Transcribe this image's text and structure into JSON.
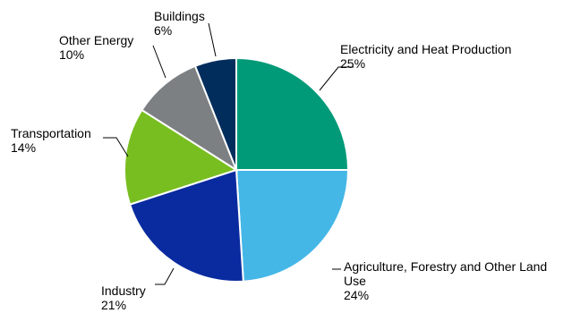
{
  "chart_data": {
    "type": "pie",
    "title": "",
    "legend": "none",
    "slices": [
      {
        "label": "Electricity and Heat Production",
        "label_lines": [
          "Electricity and Heat Production"
        ],
        "pct_text": "25%",
        "value": 25,
        "color": "#009a78"
      },
      {
        "label": "Agriculture, Forestry and Other Land Use",
        "label_lines": [
          "Agriculture, Forestry and Other Land",
          "Use"
        ],
        "pct_text": "24%",
        "value": 24,
        "color": "#45b7e6"
      },
      {
        "label": "Industry",
        "label_lines": [
          "Industry"
        ],
        "pct_text": "21%",
        "value": 21,
        "color": "#0a2b9f"
      },
      {
        "label": "Transportation",
        "label_lines": [
          "Transportation"
        ],
        "pct_text": "14%",
        "value": 14,
        "color": "#78be20"
      },
      {
        "label": "Other Energy",
        "label_lines": [
          "Other Energy"
        ],
        "pct_text": "10%",
        "value": 10,
        "color": "#7d8083"
      },
      {
        "label": "Buildings",
        "label_lines": [
          "Buildings"
        ],
        "pct_text": "6%",
        "value": 6,
        "color": "#002d5c"
      }
    ]
  }
}
